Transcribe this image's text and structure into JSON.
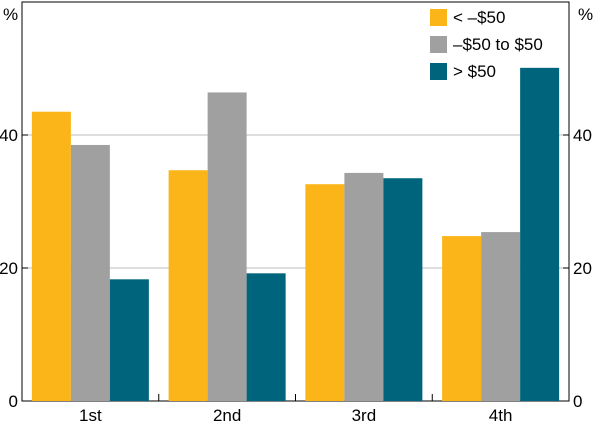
{
  "chart_data": {
    "type": "bar",
    "title": "",
    "xlabel": "",
    "ylabel": "",
    "y_unit_left": "%",
    "y_unit_right": "%",
    "categories": [
      "1st",
      "2nd",
      "3rd",
      "4th"
    ],
    "series": [
      {
        "name": "< –$50",
        "color": "#FBB518",
        "values": [
          43.5,
          34.7,
          32.6,
          24.8
        ]
      },
      {
        "name": "–$50 to $50",
        "color": "#A0A0A0",
        "values": [
          38.5,
          46.4,
          34.3,
          25.4
        ]
      },
      {
        "name": "> $50",
        "color": "#00657C",
        "values": [
          18.3,
          19.2,
          33.5,
          50.1
        ]
      }
    ],
    "ylim": [
      0,
      60
    ],
    "yticks": [
      0,
      20,
      40
    ],
    "grid": true,
    "legend_position": "top-right",
    "axis_color": "#000000",
    "grid_color": "#BDBDBD"
  }
}
